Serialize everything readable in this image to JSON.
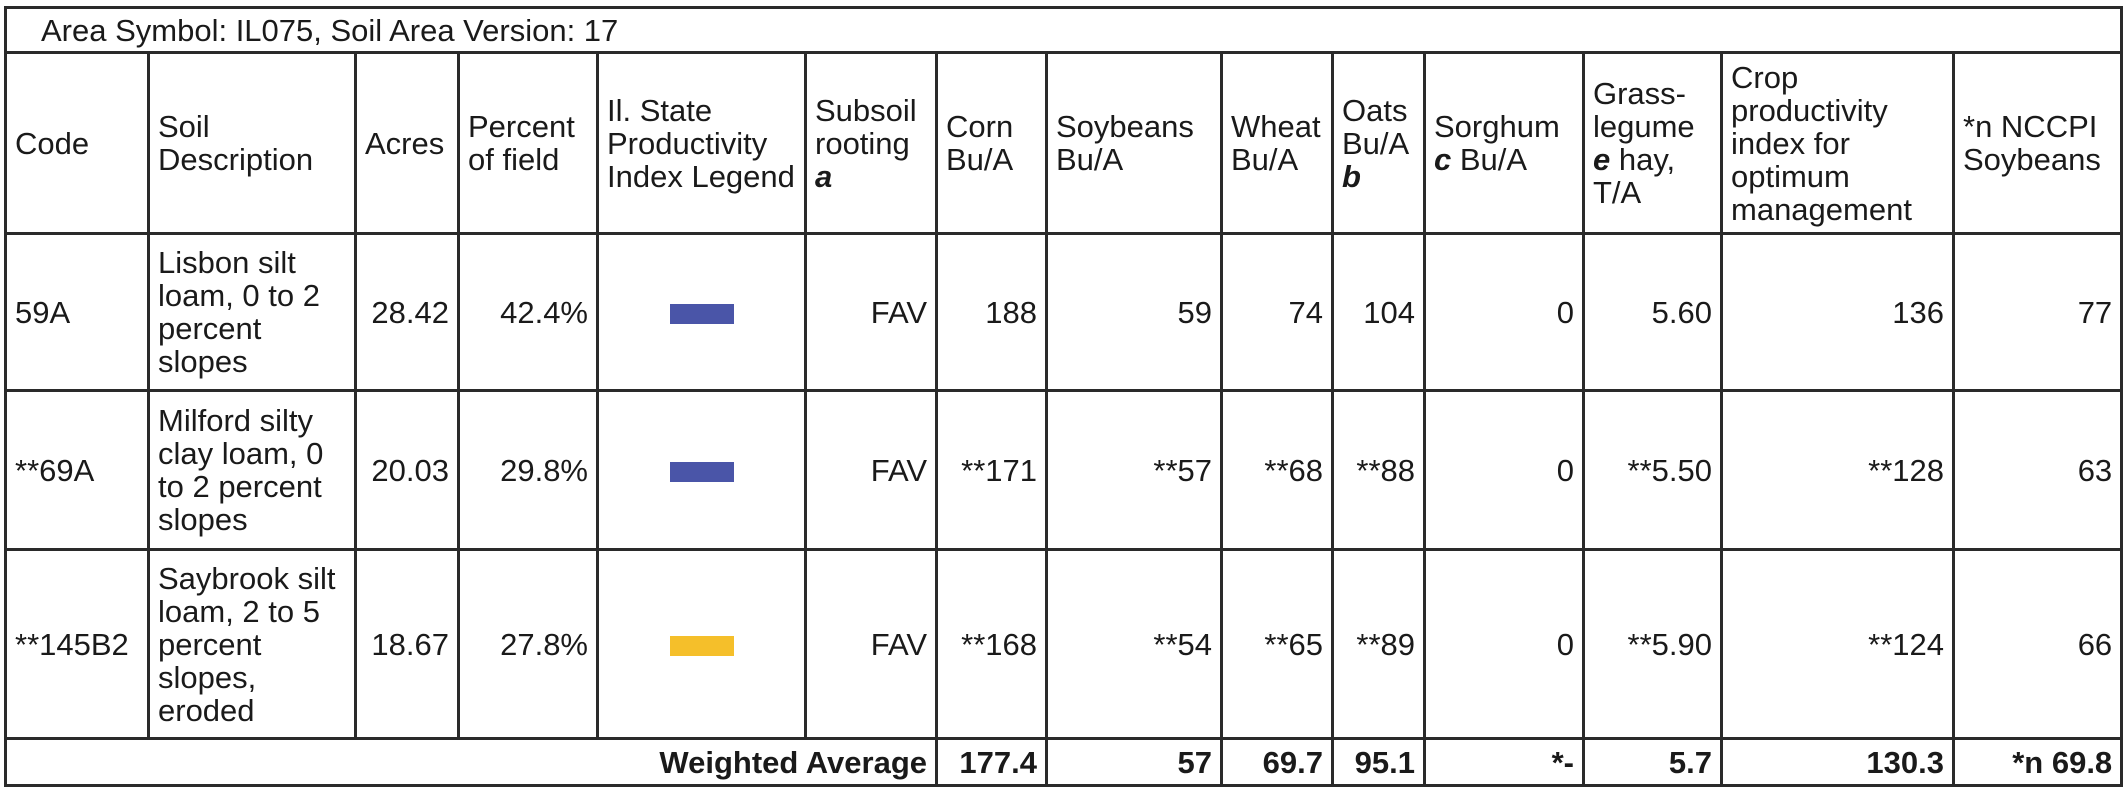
{
  "title": "Area Symbol: IL075, Soil Area Version: 17",
  "headers": {
    "code": "Code",
    "soil_description": "Soil Description",
    "acres": "Acres",
    "percent_of_field": "Percent of field",
    "legend": "Il. State Productivity Index Legend",
    "subsoil_rooting": "Subsoil rooting",
    "subsoil_rooting_note": "a",
    "corn": "Corn Bu/A",
    "soybeans": "Soybeans Bu/A",
    "wheat": "Wheat Bu/A",
    "oats": "Oats Bu/A",
    "oats_note": "b",
    "sorghum": "Sorghum",
    "sorghum_note": "c",
    "sorghum_unit": "Bu/A",
    "grass_pre": "Grass-legume",
    "grass_note": "e",
    "grass_post": "hay, T/A",
    "crop_index": "Crop productivity index for optimum management",
    "nccpi": "*n NCCPI Soybeans"
  },
  "rows": [
    {
      "code": "59A",
      "description": "Lisbon silt loam, 0 to 2 percent slopes",
      "acres": "28.42",
      "percent": "42.4%",
      "legend_color": "#4a55a8",
      "subsoil": "FAV",
      "corn": "188",
      "soybeans": "59",
      "wheat": "74",
      "oats": "104",
      "sorghum": "0",
      "grass_legume": "5.60",
      "crop_index": "136",
      "nccpi": "77"
    },
    {
      "code": "**69A",
      "description": "Milford silty clay loam, 0 to 2 percent slopes",
      "acres": "20.03",
      "percent": "29.8%",
      "legend_color": "#4a55a8",
      "subsoil": "FAV",
      "corn": "**171",
      "soybeans": "**57",
      "wheat": "**68",
      "oats": "**88",
      "sorghum": "0",
      "grass_legume": "**5.50",
      "crop_index": "**128",
      "nccpi": "63"
    },
    {
      "code": "**145B2",
      "description": "Saybrook silt loam, 2 to 5 percent slopes, eroded",
      "acres": "18.67",
      "percent": "27.8%",
      "legend_color": "#f5bf2a",
      "subsoil": "FAV",
      "corn": "**168",
      "soybeans": "**54",
      "wheat": "**65",
      "oats": "**89",
      "sorghum": "0",
      "grass_legume": "**5.90",
      "crop_index": "**124",
      "nccpi": "66"
    }
  ],
  "weighted_average": {
    "label": "Weighted Average",
    "corn": "177.4",
    "soybeans": "57",
    "wheat": "69.7",
    "oats": "95.1",
    "sorghum": "*-",
    "grass_legume": "5.7",
    "crop_index": "130.3",
    "nccpi": "*n 69.8"
  }
}
